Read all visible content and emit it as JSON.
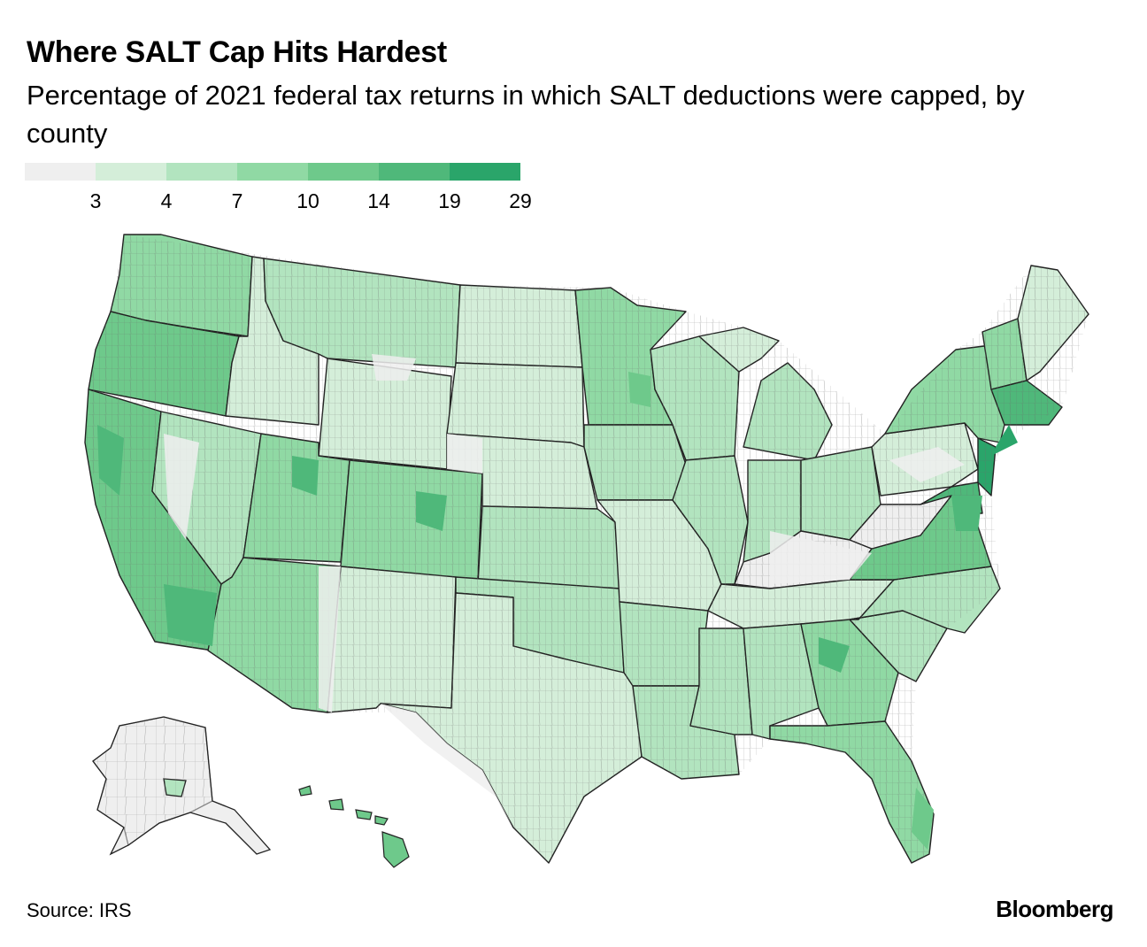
{
  "header": {
    "title": "Where SALT Cap Hits Hardest",
    "subtitle": "Percentage of 2021 federal tax returns in which SALT deductions were capped, by county"
  },
  "legend": {
    "colors": [
      "#efefef",
      "#d4eed9",
      "#b2e4bf",
      "#90d9a4",
      "#6ec98b",
      "#4fb87a",
      "#2aa56a"
    ],
    "ticks": [
      "3",
      "4",
      "7",
      "10",
      "14",
      "19",
      "29"
    ]
  },
  "map": {
    "palette": {
      "no_data_light": "#efefef",
      "border": "#222222",
      "county_line": "#5a5a5a"
    }
  },
  "footer": {
    "source": "Source: IRS",
    "brand": "Bloomberg"
  }
}
